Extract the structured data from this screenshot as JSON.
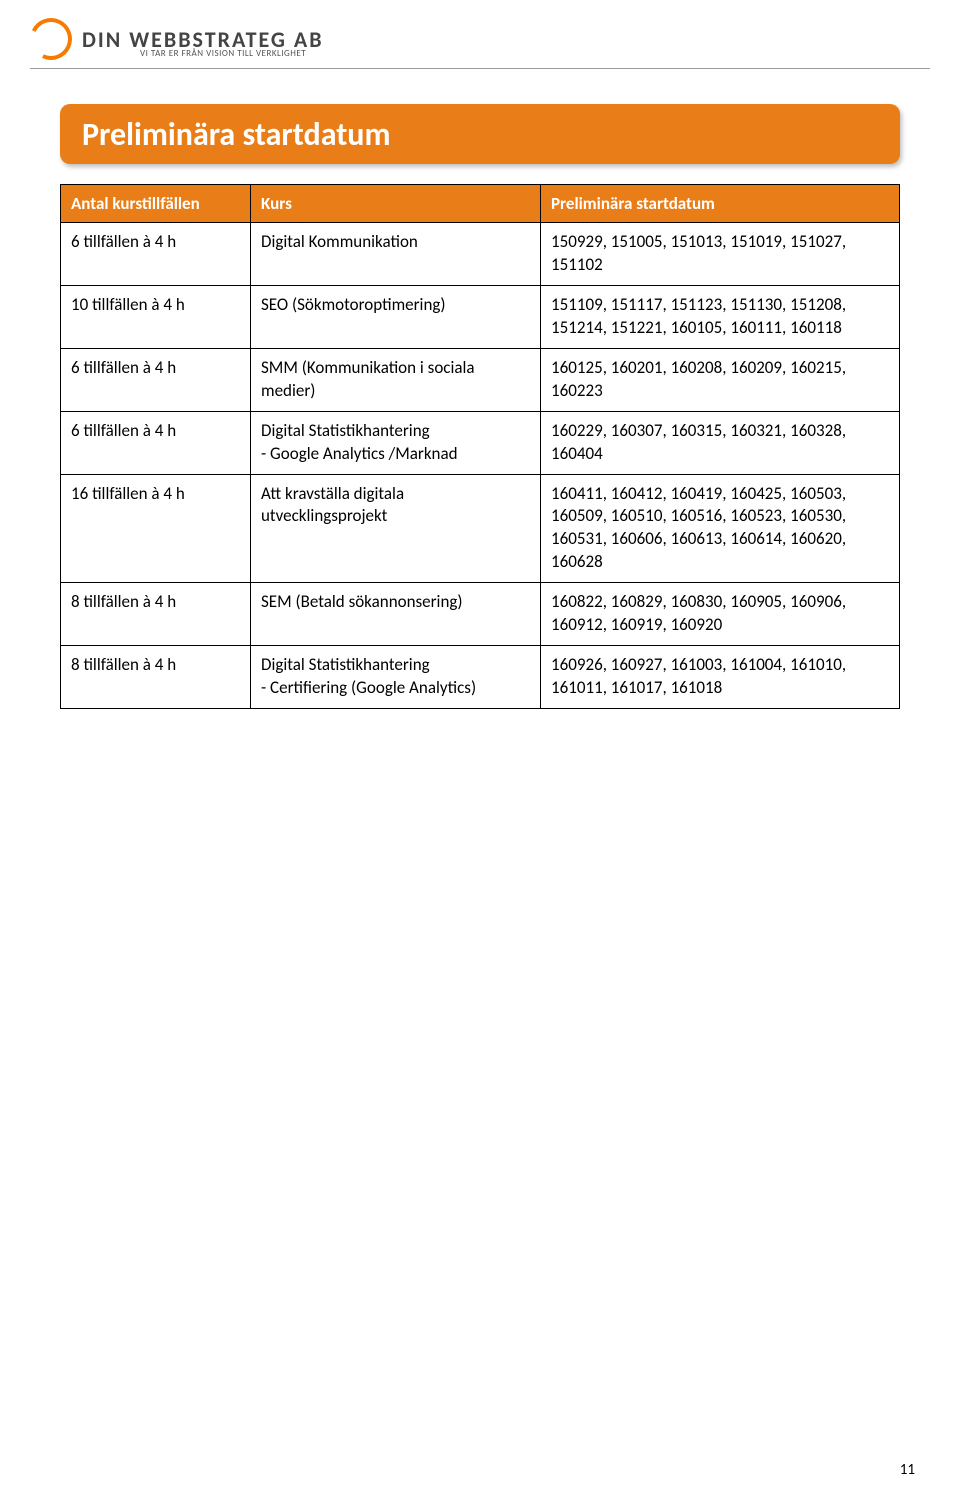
{
  "logo": {
    "company": "DIN WEBBSTRATEG AB",
    "tagline": "VI TAR ER FRÅN VISION TILL VERKLIGHET"
  },
  "title": "Preliminära startdatum",
  "table": {
    "columns": [
      "Antal kurstillfällen",
      "Kurs",
      "Preliminära startdatum"
    ],
    "rows": [
      {
        "c0": "6 tillfällen à 4 h",
        "c1": "Digital Kommunikation",
        "c2": "150929, 151005, 151013, 151019, 151027, 151102"
      },
      {
        "c0": "10  tillfällen à 4 h",
        "c1": "SEO (Sökmotoroptimering)",
        "c2": "151109, 151117, 151123, 151130, 151208, 151214, 151221, 160105, 160111, 160118"
      },
      {
        "c0": "6 tillfällen à 4 h",
        "c1": "SMM (Kommunikation i sociala medier)",
        "c2": "160125, 160201, 160208, 160209, 160215, 160223"
      },
      {
        "c0": "6 tillfällen à 4 h",
        "c1": "Digital Statistikhantering\n- Google Analytics /Marknad",
        "c2": "160229, 160307, 160315, 160321, 160328, 160404"
      },
      {
        "c0": "16 tillfällen à 4 h",
        "c1": "Att kravställa digitala utvecklingsprojekt",
        "c2": "160411, 160412, 160419, 160425, 160503, 160509, 160510, 160516, 160523, 160530, 160531, 160606, 160613, 160614, 160620, 160628"
      },
      {
        "c0": "8 tillfällen à 4 h",
        "c1": "SEM (Betald sökannonsering)",
        "c2": "160822, 160829, 160830, 160905, 160906, 160912, 160919, 160920"
      },
      {
        "c0": "8 tillfällen à 4 h",
        "c1": "Digital Statistikhantering\n- Certifiering (Google Analytics)",
        "c2": "160926, 160927, 161003, 161004, 161010, 161011, 161017, 161018"
      }
    ]
  },
  "page_number": "11",
  "colors": {
    "accent": "#e97d18",
    "text": "#000000",
    "header_text": "#ffffff"
  }
}
